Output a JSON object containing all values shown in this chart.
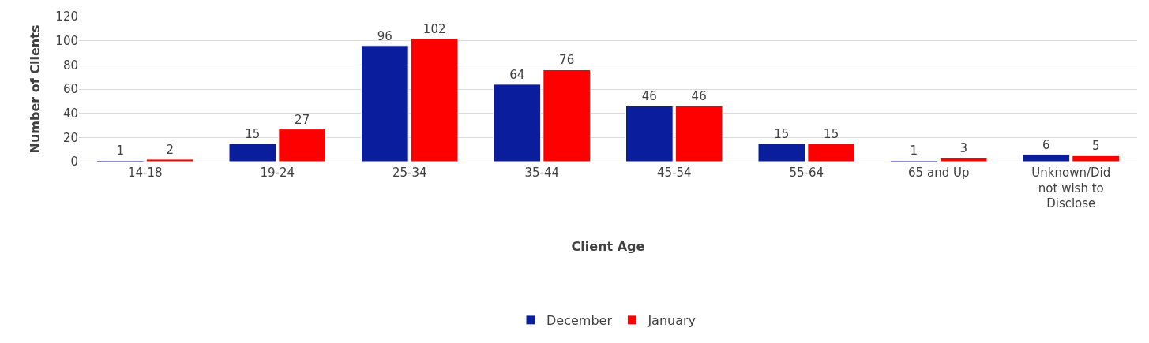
{
  "chart_data": {
    "type": "bar",
    "xlabel": "Client Age",
    "ylabel": "Number of Clients",
    "categories": [
      "14-18",
      "19-24",
      "25-34",
      "35-44",
      "45-54",
      "55-64",
      "65 and Up",
      "Unknown/Did not wish to Disclose"
    ],
    "series": [
      {
        "name": "December",
        "color": "#0a1d9c",
        "values": [
          1,
          15,
          96,
          64,
          46,
          15,
          1,
          6
        ]
      },
      {
        "name": "January",
        "color": "#ff0000",
        "values": [
          2,
          27,
          102,
          76,
          46,
          15,
          3,
          5
        ]
      }
    ],
    "ylim": [
      0,
      120
    ],
    "yticks": [
      0,
      20,
      40,
      60,
      80,
      100,
      120
    ],
    "grid": "y",
    "legend": "bottom",
    "data_labels": true
  }
}
